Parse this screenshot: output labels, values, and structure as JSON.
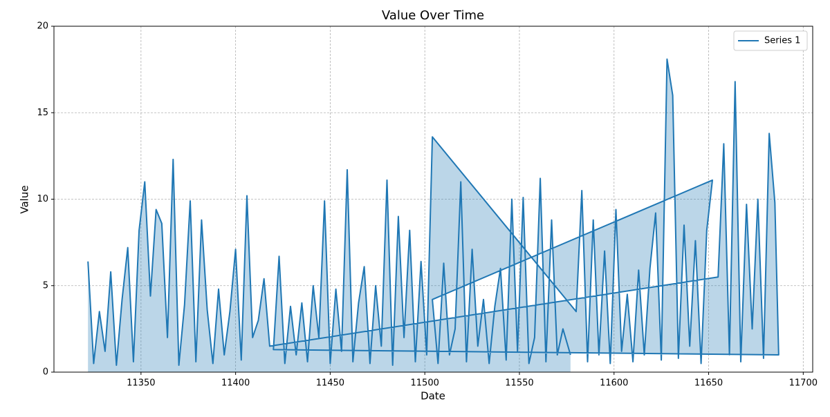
{
  "chart_data": {
    "type": "line",
    "title": "Value Over Time",
    "xlabel": "Date",
    "ylabel": "Value",
    "x": [
      11322,
      11325,
      11328,
      11331,
      11334,
      11337,
      11340,
      11343,
      11346,
      11349,
      11352,
      11355,
      11358,
      11361,
      11364,
      11367,
      11370,
      11373,
      11376,
      11379,
      11382,
      11385,
      11388,
      11391,
      11394,
      11397,
      11400,
      11403,
      11406,
      11409,
      11412,
      11415,
      11418,
      11655,
      11658,
      11661,
      11664,
      11667,
      11670,
      11673,
      11676,
      11679,
      11682,
      11685,
      11687,
      11420,
      11423,
      11426,
      11429,
      11432,
      11435,
      11438,
      11441,
      11444,
      11447,
      11450,
      11453,
      11456,
      11459,
      11462,
      11465,
      11468,
      11471,
      11474,
      11477,
      11480,
      11483,
      11486,
      11489,
      11492,
      11495,
      11498,
      11501,
      11504,
      11580,
      11583,
      11586,
      11589,
      11592,
      11595,
      11598,
      11601,
      11604,
      11607,
      11610,
      11613,
      11616,
      11619,
      11622,
      11625,
      11628,
      11631,
      11634,
      11637,
      11640,
      11643,
      11646,
      11649,
      11652,
      11504,
      11507,
      11510,
      11513,
      11516,
      11519,
      11522,
      11525,
      11528,
      11531,
      11534,
      11537,
      11540,
      11543,
      11546,
      11549,
      11552,
      11555,
      11558,
      11561,
      11564,
      11567,
      11570,
      11573,
      11577
    ],
    "series": [
      {
        "name": "Series 1",
        "color": "#1f77b4",
        "values": [
          6.4,
          0.5,
          3.5,
          1.2,
          5.8,
          0.4,
          4.2,
          7.2,
          0.6,
          8.2,
          11.0,
          4.4,
          9.4,
          8.6,
          2.0,
          12.3,
          0.4,
          3.9,
          9.9,
          0.6,
          8.8,
          3.6,
          0.5,
          4.8,
          1.0,
          3.5,
          7.1,
          0.7,
          10.2,
          2.0,
          3.0,
          5.4,
          1.5,
          5.5,
          13.2,
          1.0,
          16.8,
          0.6,
          9.7,
          2.5,
          10.0,
          0.8,
          13.8,
          9.8,
          1.0,
          1.3,
          6.7,
          0.5,
          3.8,
          1.0,
          4.0,
          0.6,
          5.0,
          2.0,
          9.9,
          0.5,
          4.8,
          1.2,
          11.7,
          0.6,
          4.0,
          6.1,
          0.5,
          5.0,
          1.5,
          11.1,
          0.4,
          9.0,
          2.0,
          8.2,
          0.6,
          6.4,
          1.0,
          13.6,
          3.5,
          10.5,
          0.6,
          8.8,
          1.0,
          7.0,
          0.5,
          9.4,
          1.2,
          4.5,
          0.6,
          5.9,
          1.0,
          6.0,
          9.2,
          0.7,
          18.1,
          16.0,
          0.8,
          8.5,
          1.5,
          7.6,
          0.5,
          8.2,
          11.1,
          4.2,
          0.5,
          6.3,
          1.0,
          2.5,
          11.0,
          0.6,
          7.1,
          1.5,
          4.2,
          0.5,
          3.8,
          6.0,
          0.7,
          10.0,
          1.2,
          10.1,
          0.5,
          2.0,
          11.2,
          0.6,
          8.8,
          1.0,
          2.5,
          1.0
        ]
      }
    ],
    "xlim": [
      11304,
      11705
    ],
    "xticks": [
      11350,
      11400,
      11450,
      11500,
      11550,
      11600,
      11650,
      11700
    ],
    "ylim": [
      0,
      20
    ],
    "yticks": [
      0,
      5,
      10,
      15,
      20
    ],
    "grid": true,
    "legend": "upper right",
    "fill": true
  }
}
